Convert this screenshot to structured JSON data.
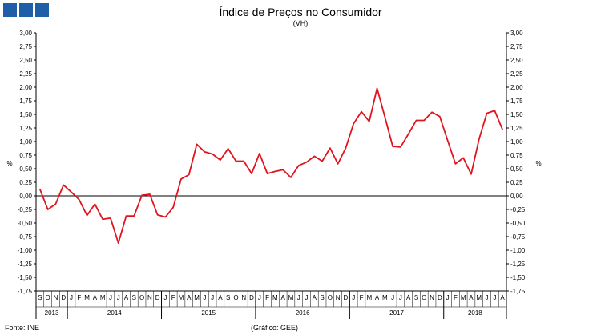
{
  "chart_data": {
    "type": "line",
    "title": "Índice de Preços no Consumidor",
    "subtitle": "(VH)",
    "ylabel": "%",
    "ylim": [
      -1.75,
      3.0
    ],
    "yticks": [
      "3,00",
      "2,75",
      "2,50",
      "2,25",
      "2,00",
      "1,75",
      "1,50",
      "1,25",
      "1,00",
      "0,75",
      "0,50",
      "0,25",
      "0,00",
      "-0,25",
      "-0,50",
      "-0,75",
      "-1,00",
      "-1,25",
      "-1,50",
      "-1,75"
    ],
    "grid": false,
    "x_months": [
      "S",
      "O",
      "N",
      "D",
      "J",
      "F",
      "M",
      "A",
      "M",
      "J",
      "J",
      "A",
      "S",
      "O",
      "N",
      "D",
      "J",
      "F",
      "M",
      "A",
      "M",
      "J",
      "J",
      "A",
      "S",
      "O",
      "N",
      "D",
      "J",
      "F",
      "M",
      "A",
      "M",
      "J",
      "J",
      "A",
      "S",
      "O",
      "N",
      "D",
      "J",
      "F",
      "M",
      "A",
      "M",
      "J",
      "J",
      "A",
      "S",
      "O",
      "N",
      "D",
      "J",
      "F",
      "M",
      "A",
      "M",
      "J",
      "J",
      "A"
    ],
    "x_years": [
      {
        "label": "2013",
        "start": 0,
        "count": 4
      },
      {
        "label": "2014",
        "start": 4,
        "count": 12
      },
      {
        "label": "2015",
        "start": 16,
        "count": 12
      },
      {
        "label": "2016",
        "start": 28,
        "count": 12
      },
      {
        "label": "2017",
        "start": 40,
        "count": 12
      },
      {
        "label": "2018",
        "start": 52,
        "count": 8
      }
    ],
    "series": [
      {
        "color": "#e0141e",
        "values": [
          0.12,
          -0.25,
          -0.15,
          0.2,
          0.07,
          -0.07,
          -0.36,
          -0.15,
          -0.43,
          -0.41,
          -0.87,
          -0.37,
          -0.37,
          0.01,
          0.03,
          -0.35,
          -0.39,
          -0.21,
          0.31,
          0.39,
          0.95,
          0.81,
          0.77,
          0.66,
          0.87,
          0.64,
          0.64,
          0.41,
          0.78,
          0.41,
          0.45,
          0.48,
          0.34,
          0.56,
          0.62,
          0.73,
          0.64,
          0.88,
          0.59,
          0.88,
          1.33,
          1.55,
          1.37,
          1.98,
          1.45,
          0.91,
          0.9,
          1.14,
          1.39,
          1.39,
          1.54,
          1.46,
          1.02,
          0.59,
          0.7,
          0.4,
          1.04,
          1.52,
          1.57,
          1.22
        ]
      }
    ]
  },
  "header": {
    "title": "Índice de Preços no Consumidor",
    "subtitle": "(VH)"
  },
  "footer": {
    "source": "Fonte: INE",
    "credit": "(Gráfico: GEE)"
  },
  "colors": {
    "logo": "#1f5fa8",
    "line": "#e0141e"
  }
}
